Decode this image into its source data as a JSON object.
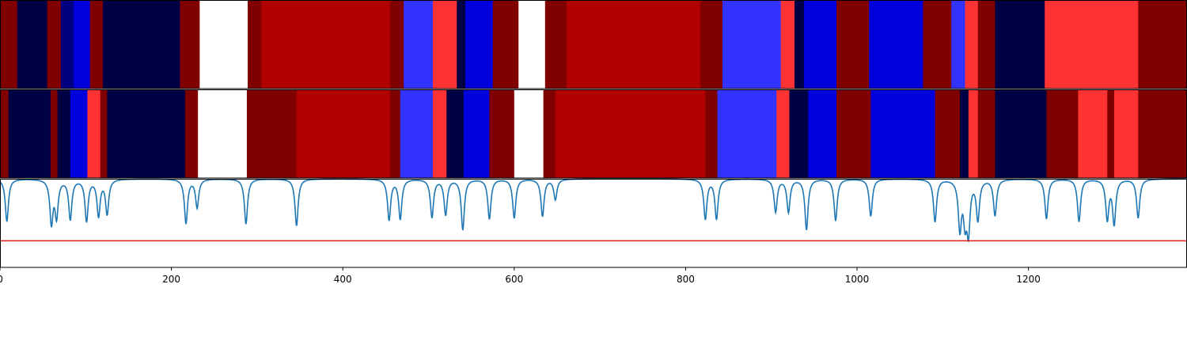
{
  "chart_data": {
    "type": "heatmap",
    "title": "",
    "xlabel": "",
    "ylabel": "",
    "xlim": [
      0,
      1385
    ],
    "x_ticks": [
      0,
      200,
      400,
      600,
      800,
      1000,
      1200
    ],
    "x_tick_labels": [
      "0",
      "200",
      "400",
      "600",
      "800",
      "1000",
      "1200"
    ],
    "colors": {
      "dark_red": "#800000",
      "red": "#b00000",
      "light_red": "#ff3333",
      "white": "#ffffff",
      "light_blue": "#3333ff",
      "blue": "#0000dd",
      "dark_blue": "#000080",
      "navy": "#000044",
      "line": "#1f77b4",
      "threshold": "#e31a1c"
    },
    "tracks": [
      {
        "segments": [
          [
            0,
            20,
            "dark_red"
          ],
          [
            20,
            55,
            "navy"
          ],
          [
            55,
            71,
            "dark_red"
          ],
          [
            71,
            86,
            "dark_blue"
          ],
          [
            86,
            105,
            "blue"
          ],
          [
            105,
            120,
            "dark_red"
          ],
          [
            120,
            210,
            "navy"
          ],
          [
            210,
            233,
            "dark_red"
          ],
          [
            233,
            289,
            "white"
          ],
          [
            289,
            305,
            "dark_red"
          ],
          [
            305,
            455,
            "red"
          ],
          [
            455,
            471,
            "dark_red"
          ],
          [
            471,
            505,
            "light_blue"
          ],
          [
            505,
            533,
            "light_red"
          ],
          [
            533,
            543,
            "navy"
          ],
          [
            543,
            575,
            "blue"
          ],
          [
            575,
            605,
            "dark_red"
          ],
          [
            605,
            636,
            "white"
          ],
          [
            636,
            661,
            "dark_red"
          ],
          [
            661,
            817,
            "red"
          ],
          [
            817,
            843,
            "dark_red"
          ],
          [
            843,
            911,
            "light_blue"
          ],
          [
            911,
            927,
            "light_red"
          ],
          [
            927,
            938,
            "navy"
          ],
          [
            938,
            976,
            "blue"
          ],
          [
            976,
            1014,
            "dark_red"
          ],
          [
            1014,
            1077,
            "blue"
          ],
          [
            1077,
            1110,
            "dark_red"
          ],
          [
            1110,
            1126,
            "light_blue"
          ],
          [
            1126,
            1141,
            "light_red"
          ],
          [
            1141,
            1161,
            "dark_red"
          ],
          [
            1161,
            1219,
            "navy"
          ],
          [
            1219,
            1328,
            "light_red"
          ],
          [
            1328,
            1385,
            "dark_red"
          ]
        ]
      },
      {
        "segments": [
          [
            0,
            10,
            "dark_red"
          ],
          [
            10,
            59,
            "navy"
          ],
          [
            59,
            67,
            "dark_red"
          ],
          [
            67,
            82,
            "navy"
          ],
          [
            82,
            102,
            "blue"
          ],
          [
            102,
            117,
            "light_red"
          ],
          [
            117,
            125,
            "dark_red"
          ],
          [
            125,
            216,
            "navy"
          ],
          [
            216,
            231,
            "dark_red"
          ],
          [
            231,
            288,
            "white"
          ],
          [
            288,
            346,
            "dark_red"
          ],
          [
            346,
            455,
            "red"
          ],
          [
            455,
            467,
            "dark_red"
          ],
          [
            467,
            505,
            "light_blue"
          ],
          [
            505,
            521,
            "light_red"
          ],
          [
            521,
            541,
            "navy"
          ],
          [
            541,
            571,
            "blue"
          ],
          [
            571,
            600,
            "dark_red"
          ],
          [
            600,
            634,
            "white"
          ],
          [
            634,
            648,
            "dark_red"
          ],
          [
            648,
            823,
            "red"
          ],
          [
            823,
            837,
            "dark_red"
          ],
          [
            837,
            906,
            "light_blue"
          ],
          [
            906,
            921,
            "light_red"
          ],
          [
            921,
            943,
            "navy"
          ],
          [
            943,
            976,
            "blue"
          ],
          [
            976,
            1016,
            "dark_red"
          ],
          [
            1016,
            1091,
            "blue"
          ],
          [
            1091,
            1120,
            "dark_red"
          ],
          [
            1120,
            1130,
            "navy"
          ],
          [
            1130,
            1141,
            "light_red"
          ],
          [
            1141,
            1161,
            "dark_red"
          ],
          [
            1161,
            1221,
            "navy"
          ],
          [
            1221,
            1258,
            "dark_red"
          ],
          [
            1258,
            1292,
            "light_red"
          ],
          [
            1292,
            1300,
            "dark_red"
          ],
          [
            1300,
            1328,
            "light_red"
          ],
          [
            1328,
            1385,
            "dark_red"
          ]
        ]
      }
    ],
    "line_panel": {
      "ylim": [
        0,
        1
      ],
      "threshold": 0.3,
      "baseline": 1.0,
      "dips": [
        [
          8,
          0.52
        ],
        [
          60,
          0.51
        ],
        [
          66,
          0.59
        ],
        [
          82,
          0.55
        ],
        [
          101,
          0.53
        ],
        [
          115,
          0.59
        ],
        [
          125,
          0.61
        ],
        [
          217,
          0.5
        ],
        [
          230,
          0.68
        ],
        [
          287,
          0.49
        ],
        [
          346,
          0.47
        ],
        [
          454,
          0.54
        ],
        [
          467,
          0.55
        ],
        [
          504,
          0.57
        ],
        [
          520,
          0.6
        ],
        [
          540,
          0.43
        ],
        [
          571,
          0.55
        ],
        [
          600,
          0.56
        ],
        [
          633,
          0.58
        ],
        [
          648,
          0.77
        ],
        [
          823,
          0.55
        ],
        [
          836,
          0.55
        ],
        [
          905,
          0.63
        ],
        [
          920,
          0.63
        ],
        [
          941,
          0.43
        ],
        [
          975,
          0.53
        ],
        [
          1016,
          0.58
        ],
        [
          1091,
          0.52
        ],
        [
          1120,
          0.45
        ],
        [
          1126,
          0.58
        ],
        [
          1130,
          0.44
        ],
        [
          1141,
          0.55
        ],
        [
          1161,
          0.59
        ],
        [
          1221,
          0.55
        ],
        [
          1259,
          0.52
        ],
        [
          1292,
          0.55
        ],
        [
          1300,
          0.5
        ],
        [
          1328,
          0.56
        ]
      ]
    }
  }
}
